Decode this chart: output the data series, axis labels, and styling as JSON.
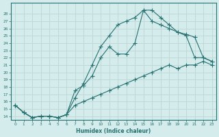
{
  "xlabel": "Humidex (Indice chaleur)",
  "bg_color": "#d4ecec",
  "grid_color": "#c0d8d8",
  "line_color": "#267070",
  "xlim": [
    -0.5,
    23.5
  ],
  "ylim": [
    13.5,
    29.5
  ],
  "xticks": [
    0,
    1,
    2,
    3,
    4,
    5,
    6,
    7,
    8,
    9,
    10,
    11,
    12,
    13,
    14,
    15,
    16,
    17,
    18,
    19,
    20,
    21,
    22,
    23
  ],
  "yticks": [
    14,
    15,
    16,
    17,
    18,
    19,
    20,
    21,
    22,
    23,
    24,
    25,
    26,
    27,
    28
  ],
  "curve1": {
    "x": [
      0,
      1,
      2,
      3,
      4,
      5,
      6,
      7,
      8,
      9,
      10,
      11,
      12,
      13,
      14,
      15,
      16,
      17,
      18,
      19,
      20,
      21,
      22,
      23
    ],
    "y": [
      15.5,
      14.5,
      13.8,
      14.0,
      14.0,
      13.8,
      14.2,
      16.5,
      18.5,
      21.0,
      23.5,
      25.0,
      26.5,
      27.0,
      27.5,
      28.5,
      28.5,
      27.5,
      26.5,
      25.5,
      25.2,
      24.8,
      22.0,
      21.5
    ]
  },
  "curve2": {
    "x": [
      0,
      1,
      2,
      3,
      4,
      5,
      6,
      7,
      8,
      9,
      10,
      11,
      12,
      13,
      14,
      15,
      16,
      17,
      18,
      19,
      20,
      21,
      22,
      23
    ],
    "y": [
      15.5,
      14.5,
      13.8,
      14.0,
      14.0,
      13.8,
      14.2,
      17.5,
      18.2,
      19.5,
      22.0,
      23.5,
      22.5,
      22.5,
      24.0,
      28.5,
      27.0,
      26.5,
      26.0,
      25.5,
      25.0,
      22.0,
      22.0,
      21.5
    ]
  },
  "curve3": {
    "x": [
      0,
      1,
      2,
      3,
      4,
      5,
      6,
      7,
      8,
      9,
      10,
      11,
      12,
      13,
      14,
      15,
      16,
      17,
      18,
      19,
      20,
      21,
      22,
      23
    ],
    "y": [
      15.5,
      14.5,
      13.8,
      14.0,
      14.0,
      13.8,
      14.2,
      15.5,
      16.0,
      16.5,
      17.0,
      17.5,
      18.0,
      18.5,
      19.0,
      19.5,
      20.0,
      20.5,
      21.0,
      20.5,
      21.0,
      21.0,
      21.5,
      21.0
    ]
  }
}
